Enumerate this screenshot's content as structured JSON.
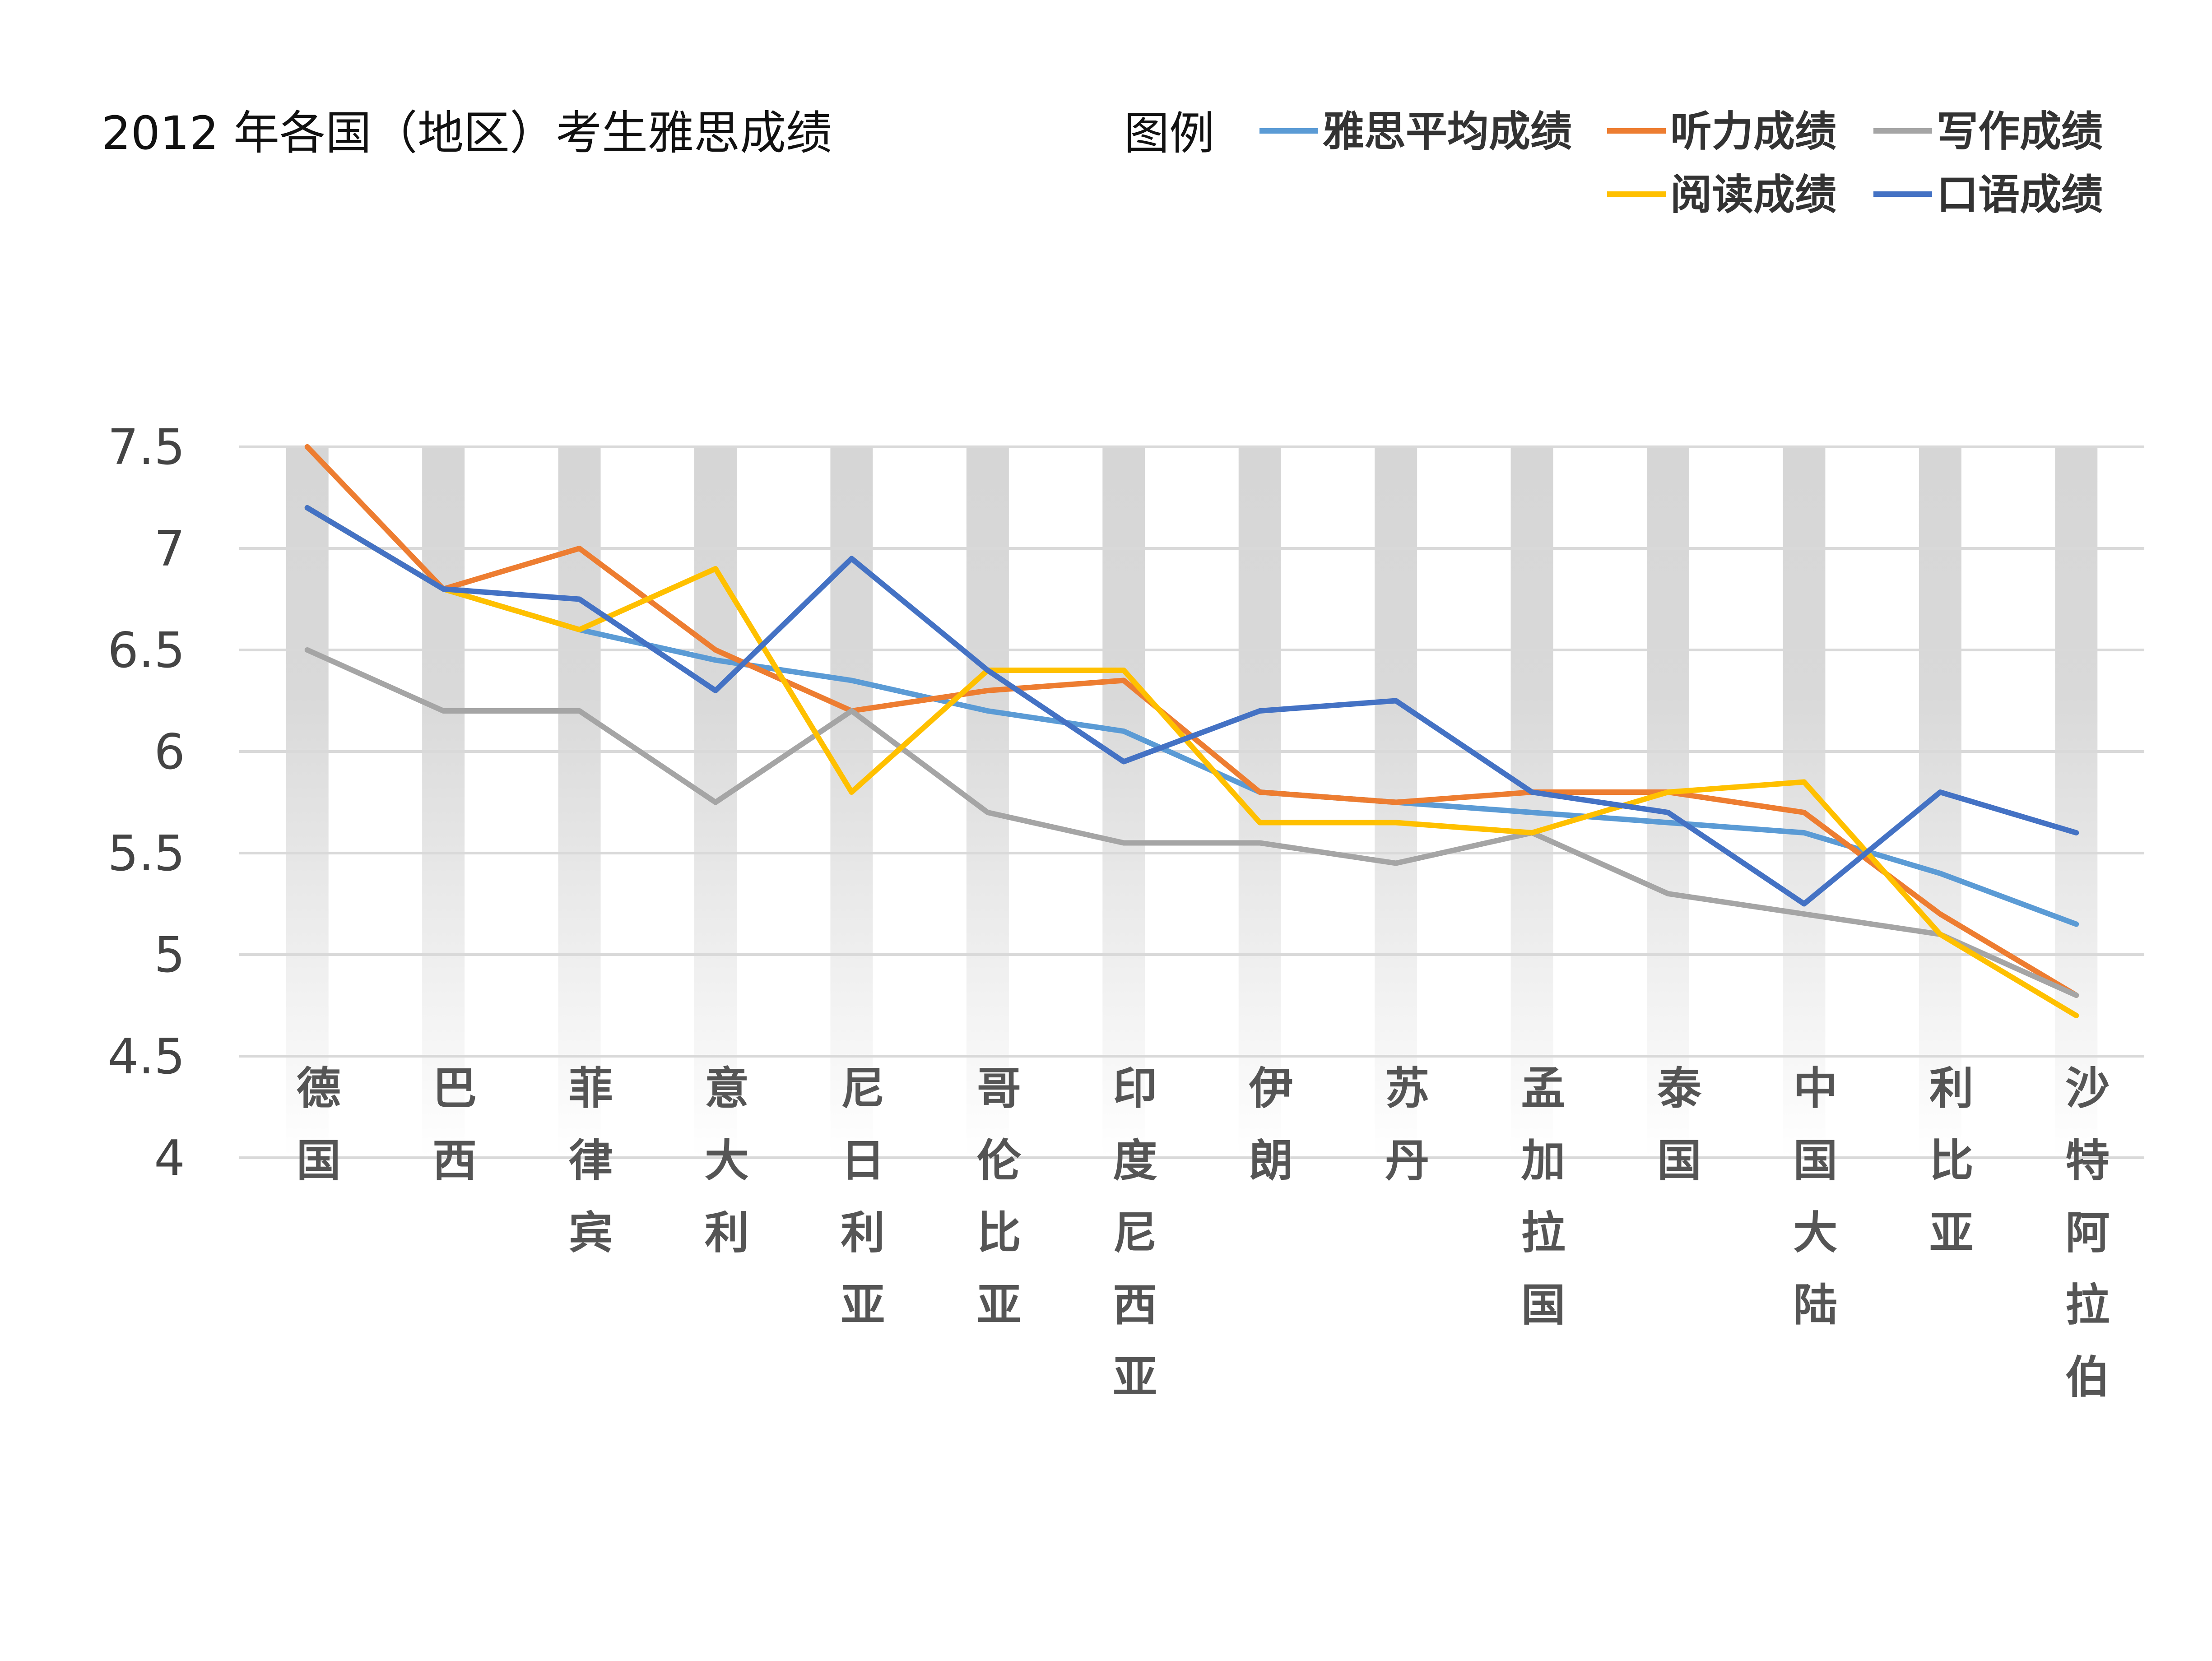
{
  "chart_data": {
    "type": "line",
    "title": "2012 年各国（地区）考生雅思成绩",
    "legend_heading": "图例",
    "legend_position": "top-right",
    "grid": true,
    "xlabel": "",
    "ylabel": "",
    "ylim": [
      4,
      7.5
    ],
    "yticks": [
      "7.5",
      "7",
      "6.5",
      "6",
      "5.5",
      "5",
      "4.5",
      "4"
    ],
    "categories": [
      "德国",
      "巴西",
      "菲律宾",
      "意大利",
      "尼日利亚",
      "哥伦比亚",
      "印度尼西亚",
      "伊朗",
      "苏丹",
      "孟加拉国",
      "泰国",
      "中国大陆",
      "利比亚",
      "沙特阿拉伯"
    ],
    "series": [
      {
        "name": "雅思平均成绩",
        "color": "#5b9bd5",
        "values": [
          7.2,
          6.8,
          6.6,
          6.45,
          6.35,
          6.2,
          6.1,
          5.8,
          5.75,
          5.7,
          5.65,
          5.6,
          5.4,
          5.15
        ]
      },
      {
        "name": "听力成绩",
        "color": "#ed7d31",
        "values": [
          7.5,
          6.8,
          7.0,
          6.5,
          6.2,
          6.3,
          6.35,
          5.8,
          5.75,
          5.8,
          5.8,
          5.7,
          5.2,
          4.8
        ]
      },
      {
        "name": "写作成绩",
        "color": "#a5a5a5",
        "values": [
          6.5,
          6.2,
          6.2,
          5.75,
          6.2,
          5.7,
          5.55,
          5.55,
          5.45,
          5.6,
          5.3,
          5.2,
          5.1,
          4.8
        ]
      },
      {
        "name": "阅读成绩",
        "color": "#ffc000",
        "values": [
          7.2,
          6.8,
          6.6,
          6.9,
          5.8,
          6.4,
          6.4,
          5.65,
          5.65,
          5.6,
          5.8,
          5.85,
          5.1,
          4.7
        ]
      },
      {
        "name": "口语成绩",
        "color": "#4472c4",
        "values": [
          7.2,
          6.8,
          6.75,
          6.3,
          6.95,
          6.4,
          5.95,
          6.2,
          6.25,
          5.8,
          5.7,
          5.25,
          5.8,
          5.6
        ]
      }
    ]
  }
}
